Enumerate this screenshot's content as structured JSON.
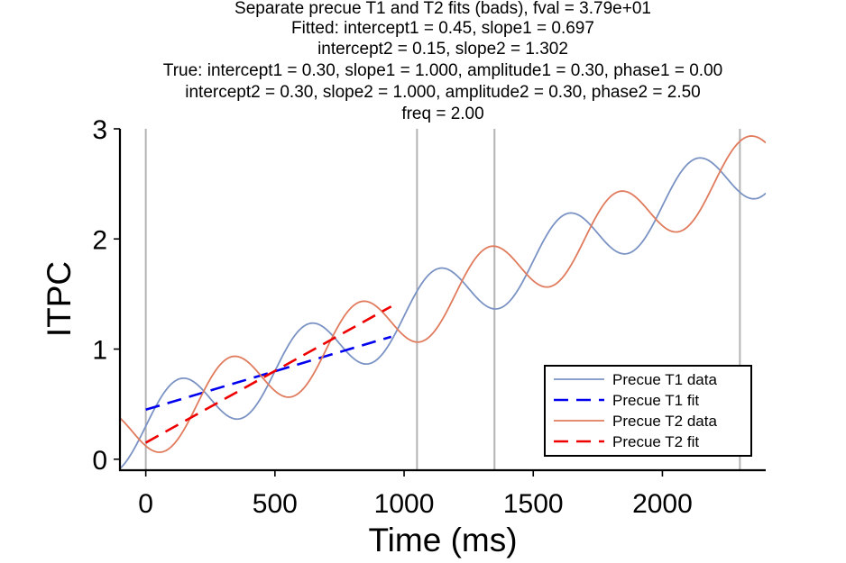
{
  "chart_data": {
    "type": "line",
    "title_lines": [
      "Separate precue T1 and T2 fits (bads), fval = 3.79e+01",
      "Fitted: intercept1 = 0.45, slope1 = 0.697",
      "intercept2 = 0.15, slope2 = 1.302",
      "True: intercept1 = 0.30, slope1 = 1.000, amplitude1 = 0.30, phase1 = 0.00",
      "intercept2 = 0.30, slope2 = 1.000, amplitude2 = 0.30, phase2 = 2.50",
      "freq = 2.00"
    ],
    "xlabel": "Time (ms)",
    "ylabel": "ITPC",
    "xlim": [
      -100,
      2400
    ],
    "ylim": [
      -0.1,
      3.0
    ],
    "xticks": [
      0,
      500,
      1000,
      1500,
      2000
    ],
    "yticks": [
      0,
      1,
      2,
      3
    ],
    "vlines": [
      0,
      1050,
      1350,
      2300
    ],
    "legend_position": "lower-right",
    "series": [
      {
        "name": "Precue T1 data",
        "style": "solid",
        "color": "#7b93c4",
        "function": {
          "intercept": 0.3,
          "slope": 1.0,
          "amplitude": 0.3,
          "phase": 0.0,
          "freq": 2.0
        },
        "x_range": [
          -100,
          2400
        ]
      },
      {
        "name": "Precue T1 fit",
        "style": "dashed",
        "color": "#0000ee",
        "x": [
          0,
          950
        ],
        "y": [
          0.45,
          1.112
        ]
      },
      {
        "name": "Precue T2 data",
        "style": "solid",
        "color": "#e07b5d",
        "function": {
          "intercept": 0.3,
          "slope": 1.0,
          "amplitude": 0.3,
          "phase": 2.5,
          "freq": 2.0
        },
        "x_range": [
          -100,
          2400
        ]
      },
      {
        "name": "Precue T2 fit",
        "style": "dashed",
        "color": "#ee0000",
        "x": [
          0,
          950
        ],
        "y": [
          0.15,
          1.387
        ]
      }
    ]
  }
}
